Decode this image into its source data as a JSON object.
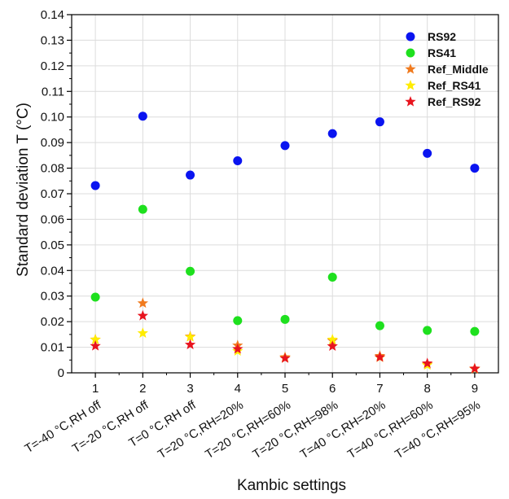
{
  "chart_data": {
    "type": "scatter",
    "title": "",
    "xlabel": "Kambic settings",
    "ylabel": "Standard deviation T (°C)",
    "xlim": [
      0.5,
      9.5
    ],
    "ylim": [
      0,
      0.14
    ],
    "y_ticks": [
      "0",
      "0.01",
      "0.02",
      "0.03",
      "0.04",
      "0.05",
      "0.06",
      "0.07",
      "0.08",
      "0.09",
      "0.10",
      "0.11",
      "0.12",
      "0.13",
      "0.14"
    ],
    "x_ticks": [
      "1",
      "2",
      "3",
      "4",
      "5",
      "6",
      "7",
      "8",
      "9"
    ],
    "categories": [
      "T=-40 °C,RH off",
      "T=-20 °C,RH off",
      "T=0 °C,RH off",
      "T=20 °C,RH=20%",
      "T=20 °C,RH=60%",
      "T=20 °C,RH=98%",
      "T=40 °C,RH=20%",
      "T=40 °C,RH=60%",
      "T=40 °C,RH=95%"
    ],
    "grid": true,
    "legend_position": "top-right",
    "series": [
      {
        "name": "RS92",
        "marker": "circle",
        "color": "#0a14f0",
        "x": [
          1,
          2,
          3,
          4,
          5,
          6,
          7,
          8,
          9
        ],
        "values": [
          0.0732,
          0.1003,
          0.0773,
          0.0829,
          0.0888,
          0.0935,
          0.0981,
          0.0858,
          0.08
        ]
      },
      {
        "name": "RS41",
        "marker": "circle",
        "color": "#1ee01e",
        "x": [
          1,
          2,
          3,
          4,
          5,
          6,
          7,
          8,
          9
        ],
        "values": [
          0.0296,
          0.0639,
          0.0397,
          0.0204,
          0.0209,
          0.0374,
          0.0184,
          0.0166,
          0.0162
        ]
      },
      {
        "name": "Ref_Middle",
        "marker": "star",
        "color": "#f07a1e",
        "x": [
          1,
          2,
          3,
          4,
          5,
          6,
          7,
          8,
          9
        ],
        "values": [
          0.013,
          0.0272,
          0.0142,
          0.0107,
          0.0061,
          0.0126,
          0.0066,
          0.0034,
          0.0017
        ]
      },
      {
        "name": "Ref_RS41",
        "marker": "star",
        "color": "#ffec00",
        "x": [
          1,
          2,
          3,
          4,
          5,
          6,
          7,
          8,
          9
        ],
        "values": [
          0.013,
          0.0155,
          0.014,
          0.0085,
          0.0058,
          0.013,
          0.006,
          0.003,
          0.0015
        ]
      },
      {
        "name": "Ref_RS92",
        "marker": "star",
        "color": "#e8141e",
        "x": [
          1,
          2,
          3,
          4,
          5,
          6,
          7,
          8,
          9
        ],
        "values": [
          0.0105,
          0.0223,
          0.011,
          0.0093,
          0.0057,
          0.0104,
          0.0061,
          0.0037,
          0.0016
        ]
      }
    ]
  }
}
